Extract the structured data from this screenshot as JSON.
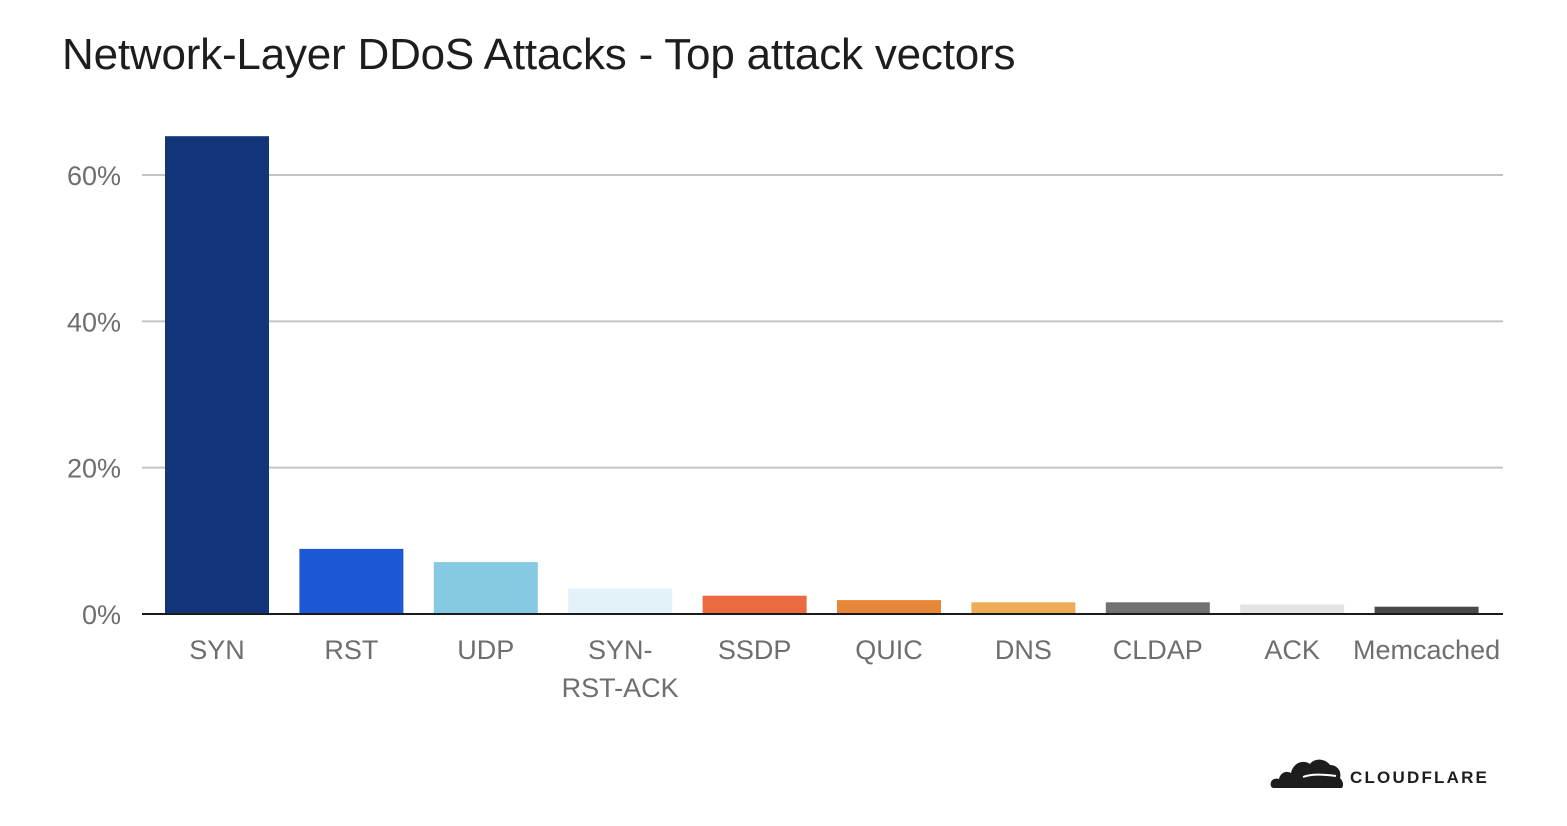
{
  "title": "Network-Layer DDoS Attacks - Top attack vectors",
  "brand": {
    "name": "CLOUDFLARE",
    "logo_icon": "cloudflare-cloud-icon"
  },
  "chart_data": {
    "type": "bar",
    "title": "Network-Layer DDoS Attacks - Top attack vectors",
    "xlabel": "",
    "ylabel": "",
    "categories": [
      "SYN",
      "RST",
      "UDP",
      "SYN-RST-ACK",
      "SSDP",
      "QUIC",
      "DNS",
      "CLDAP",
      "ACK",
      "Memcached"
    ],
    "category_label_lines": [
      [
        "SYN"
      ],
      [
        "RST"
      ],
      [
        "UDP"
      ],
      [
        "SYN-",
        "RST-ACK"
      ],
      [
        "SSDP"
      ],
      [
        "QUIC"
      ],
      [
        "DNS"
      ],
      [
        "CLDAP"
      ],
      [
        "ACK"
      ],
      [
        "Memcached"
      ]
    ],
    "values": [
      65.3,
      8.9,
      7.1,
      3.5,
      2.5,
      1.9,
      1.6,
      1.6,
      1.3,
      1.0
    ],
    "colors": [
      "#12357a",
      "#1c58d6",
      "#86c9e3",
      "#e3f2f8",
      "#ec6a3f",
      "#e58736",
      "#eeac56",
      "#717171",
      "#e3e3e3",
      "#4a4a4a"
    ],
    "ylim": [
      0,
      70
    ],
    "yticks": [
      0,
      20,
      40,
      60
    ],
    "ytick_labels": [
      "0%",
      "20%",
      "40%",
      "60%"
    ],
    "grid": true,
    "legend": "none"
  }
}
